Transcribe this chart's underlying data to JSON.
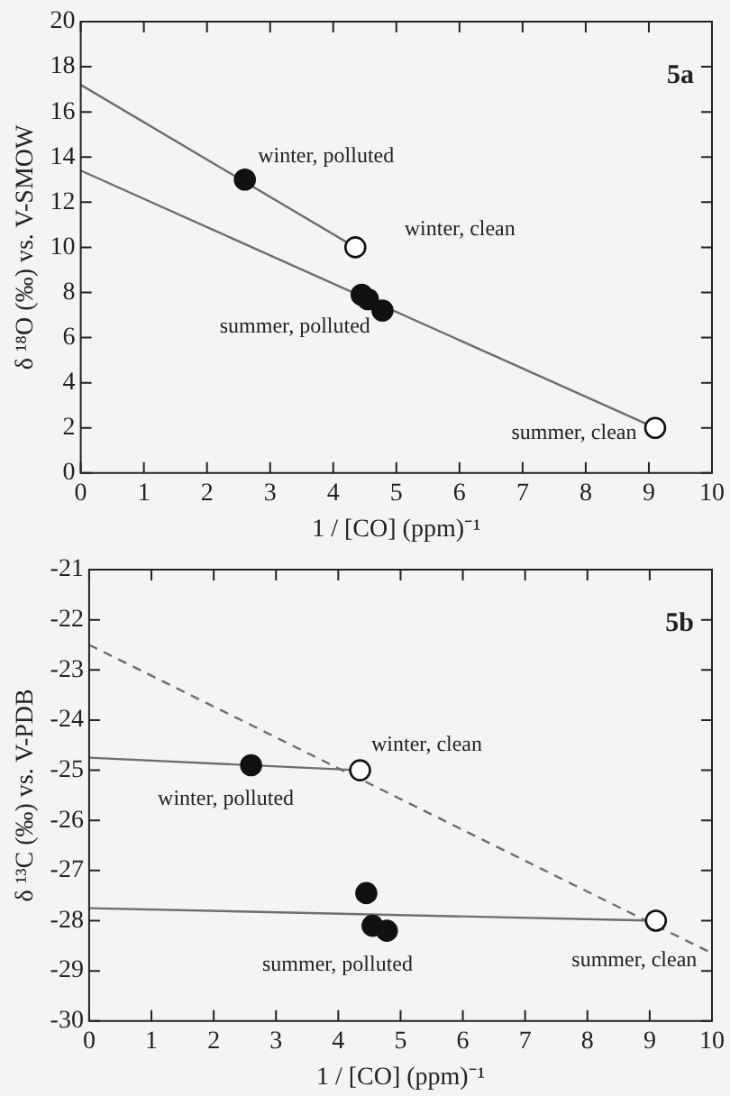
{
  "chart_data": [
    {
      "type": "scatter",
      "xlabel": "1 / [CO] (ppm)⁻¹",
      "ylabel": "δ ¹⁸O (‰) vs. V-SMOW",
      "xlim": [
        0,
        10
      ],
      "xticks": [
        0,
        1,
        2,
        3,
        4,
        5,
        6,
        7,
        8,
        9,
        10
      ],
      "ylim": [
        0,
        20
      ],
      "yticks": [
        0,
        2,
        4,
        6,
        8,
        10,
        12,
        14,
        16,
        18,
        20
      ],
      "legend": false,
      "series": [
        {
          "type": "line",
          "color": "#6e6e6e",
          "marker": "none",
          "line_style": "solid",
          "x": [
            0,
            4.35
          ],
          "values": [
            17.2,
            10
          ]
        },
        {
          "type": "line",
          "color": "#6e6e6e",
          "marker": "none",
          "line_style": "solid",
          "x": [
            0,
            9.1
          ],
          "values": [
            13.4,
            2.0
          ]
        },
        {
          "type": "scatter",
          "color": "#111111",
          "marker": "circle",
          "x": [
            2.6,
            4.45,
            4.55,
            4.78
          ],
          "values": [
            13.0,
            7.9,
            7.7,
            7.2
          ]
        },
        {
          "type": "scatter",
          "color": "#ffffff",
          "marker": "circle",
          "x": [
            4.35,
            9.1
          ],
          "values": [
            10.0,
            2.0
          ]
        }
      ],
      "annotations": [
        "5a",
        {
          "text": "winter, polluted",
          "x": 2.6,
          "y": 13.0
        },
        {
          "text": "winter, clean",
          "x": 4.35,
          "y": 10.0
        },
        {
          "text": "summer, polluted",
          "x": 4.45,
          "y": 7.9
        },
        {
          "text": "summer, clean",
          "x": 9.1,
          "y": 2.0
        }
      ]
    },
    {
      "type": "scatter",
      "xlabel": "1 / [CO] (ppm)⁻¹",
      "ylabel": "δ ¹³C (‰) vs. V-PDB",
      "xlim": [
        0,
        10
      ],
      "xticks": [
        0,
        1,
        2,
        3,
        4,
        5,
        6,
        7,
        8,
        9,
        10
      ],
      "ylim": [
        -30,
        -21
      ],
      "yticks": [
        -30,
        -29,
        -28,
        -27,
        -26,
        -25,
        -24,
        -23,
        -22,
        -21
      ],
      "legend": false,
      "series": [
        {
          "type": "line",
          "color": "#6e6e6e",
          "marker": "none",
          "line_style": "solid",
          "x": [
            0,
            4.35
          ],
          "values": [
            -24.75,
            -25.0
          ]
        },
        {
          "type": "line",
          "color": "#6e6e6e",
          "marker": "none",
          "line_style": "solid",
          "x": [
            0,
            9.1
          ],
          "values": [
            -27.75,
            -28.0
          ]
        },
        {
          "type": "line",
          "color": "#6e6e6e",
          "marker": "none",
          "line_style": "dashed",
          "x": [
            0,
            10
          ],
          "values": [
            -22.5,
            -28.65
          ]
        },
        {
          "type": "scatter",
          "color": "#111111",
          "marker": "circle",
          "x": [
            2.6,
            4.45,
            4.55,
            4.78
          ],
          "values": [
            -24.9,
            -27.45,
            -28.1,
            -28.2
          ]
        },
        {
          "type": "scatter",
          "color": "#ffffff",
          "marker": "circle",
          "x": [
            4.35,
            9.1
          ],
          "values": [
            -25.0,
            -28.0
          ]
        }
      ],
      "annotations": [
        "5b",
        {
          "text": "winter, clean",
          "x": 4.35,
          "y": -25.0
        },
        {
          "text": "winter, polluted",
          "x": 2.6,
          "y": -24.9
        },
        {
          "text": "summer, polluted",
          "x": 4.45,
          "y": -27.45
        },
        {
          "text": "summer, clean",
          "x": 9.1,
          "y": -28.0
        }
      ]
    }
  ]
}
